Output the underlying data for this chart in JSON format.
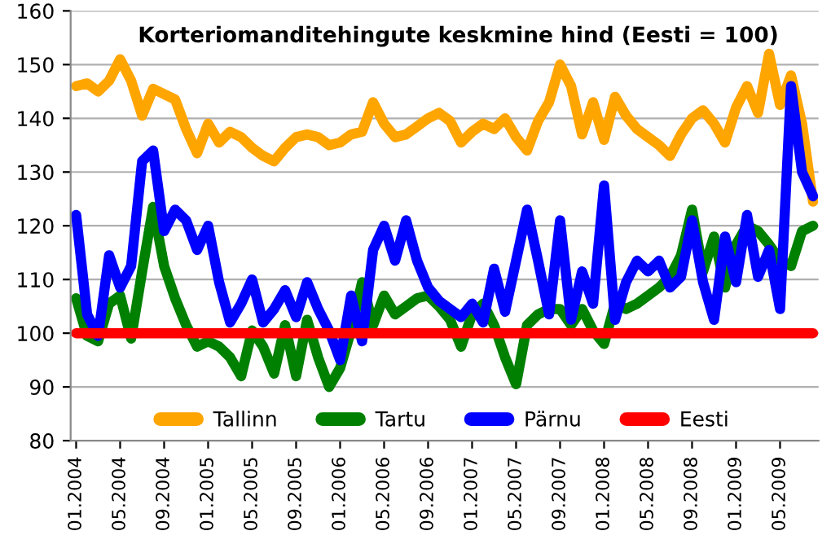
{
  "chart_data": {
    "type": "line",
    "title": "Korteriomanditehingute keskmine hind (Eesti = 100)",
    "categories": [
      "01.2004",
      null,
      null,
      null,
      "05.2004",
      null,
      null,
      null,
      "09.2004",
      null,
      null,
      null,
      "01.2005",
      null,
      null,
      null,
      "05.2005",
      null,
      null,
      null,
      "09.2005",
      null,
      null,
      null,
      "01.2006",
      null,
      null,
      null,
      "05.2006",
      null,
      null,
      null,
      "09.2006",
      null,
      null,
      null,
      "01.2007",
      null,
      null,
      null,
      "05.2007",
      null,
      null,
      null,
      "09.2007",
      null,
      null,
      null,
      "01.2008",
      null,
      null,
      null,
      "05.2008",
      null,
      null,
      null,
      "09.2008",
      null,
      null,
      null,
      "01.2009",
      null,
      null,
      null,
      "05.2009",
      null,
      null,
      null
    ],
    "series": [
      {
        "name": "Tallinn",
        "color": "#ffa500",
        "values": [
          146,
          146.5,
          145,
          147,
          151,
          147,
          140.5,
          145.5,
          144.5,
          143.5,
          138,
          133.5,
          139,
          135.5,
          137.5,
          136.5,
          134.5,
          133,
          132,
          134.5,
          136.5,
          137,
          136.5,
          135,
          135.5,
          137,
          137.5,
          143,
          139,
          136.5,
          137,
          138.5,
          140,
          141,
          139.5,
          135.5,
          137.5,
          139,
          138,
          140,
          136.5,
          134,
          139.5,
          143,
          150,
          146,
          137,
          143,
          136,
          144,
          140.5,
          138,
          136.5,
          135,
          133,
          137,
          140,
          141.5,
          139,
          135.5,
          142,
          146,
          141,
          152,
          142.5,
          148,
          139,
          124.5
        ]
      },
      {
        "name": "Tartu",
        "color": "#008000",
        "values": [
          106.5,
          99.5,
          98.5,
          105.5,
          107,
          99,
          111.5,
          123.5,
          112.5,
          106.5,
          101.5,
          97.5,
          98.5,
          97.5,
          95.5,
          92,
          100.5,
          97.5,
          92.5,
          101.5,
          92,
          102.5,
          95.5,
          90,
          93.5,
          100.5,
          109.5,
          101.5,
          107,
          103.5,
          105,
          106.5,
          107,
          105,
          102.5,
          97.5,
          103.5,
          105.5,
          101.5,
          95.5,
          90.5,
          101.5,
          103.5,
          104.5,
          104.5,
          101.5,
          104.5,
          100.5,
          98,
          105.5,
          104.5,
          105.5,
          107,
          108.5,
          110.5,
          114.5,
          123,
          111.5,
          118,
          108.5,
          116.5,
          120,
          119,
          116.5,
          113.5,
          112.5,
          119,
          120
        ]
      },
      {
        "name": "Pärnu",
        "color": "#0000ff",
        "values": [
          122,
          103.5,
          99.5,
          114.5,
          108.5,
          112.5,
          132,
          134,
          119,
          123,
          121,
          115.5,
          120,
          109.5,
          102,
          105.5,
          110,
          102,
          104.5,
          108,
          103,
          109.5,
          104.5,
          100.5,
          95,
          107,
          98.5,
          115.5,
          120,
          113.5,
          121,
          113.5,
          108.5,
          106,
          104.5,
          103,
          105.5,
          102,
          112,
          104,
          113.5,
          123,
          113.5,
          103.5,
          121,
          102.5,
          111.5,
          105.5,
          127.5,
          102.5,
          109.5,
          113.5,
          111.5,
          113.5,
          108.5,
          110.5,
          121,
          109.5,
          102.5,
          118,
          109.5,
          122,
          110.5,
          115.5,
          104.5,
          146,
          130,
          125.5
        ]
      },
      {
        "name": "Eesti",
        "color": "#ff0000",
        "values": [
          100,
          100,
          100,
          100,
          100,
          100,
          100,
          100,
          100,
          100,
          100,
          100,
          100,
          100,
          100,
          100,
          100,
          100,
          100,
          100,
          100,
          100,
          100,
          100,
          100,
          100,
          100,
          100,
          100,
          100,
          100,
          100,
          100,
          100,
          100,
          100,
          100,
          100,
          100,
          100,
          100,
          100,
          100,
          100,
          100,
          100,
          100,
          100,
          100,
          100,
          100,
          100,
          100,
          100,
          100,
          100,
          100,
          100,
          100,
          100,
          100,
          100,
          100,
          100,
          100,
          100,
          100,
          100
        ]
      }
    ],
    "ylim": [
      80,
      160
    ],
    "yticks": [
      80,
      90,
      100,
      110,
      120,
      130,
      140,
      150,
      160
    ],
    "grid": "y",
    "legend": "bottom",
    "line_style": "solid"
  }
}
